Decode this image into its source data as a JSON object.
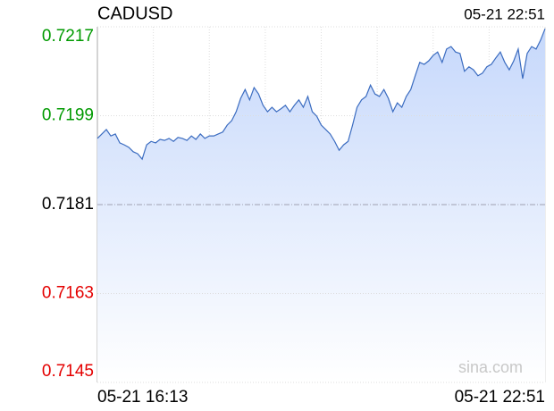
{
  "chart_data": {
    "type": "line",
    "title": "CADUSD",
    "timestamp": "05-21 22:51",
    "watermark": "sina.com",
    "categories": [
      "05-21 16:13",
      null,
      null,
      null,
      null,
      null,
      null,
      null,
      null,
      null,
      null,
      null,
      null,
      null,
      null,
      null,
      null,
      null,
      null,
      null,
      null,
      null,
      null,
      null,
      null,
      null,
      null,
      null,
      null,
      null,
      null,
      null,
      null,
      null,
      null,
      null,
      null,
      null,
      null,
      null,
      null,
      null,
      null,
      null,
      null,
      null,
      null,
      null,
      null,
      null,
      null,
      null,
      null,
      null,
      null,
      null,
      null,
      null,
      null,
      null,
      null,
      null,
      null,
      null,
      null,
      null,
      null,
      null,
      null,
      null,
      null,
      null,
      null,
      null,
      null,
      null,
      null,
      null,
      null,
      null,
      null,
      null,
      null,
      null,
      null,
      null,
      null,
      null,
      null,
      null,
      null,
      null,
      null,
      null,
      null,
      null,
      null,
      null,
      null,
      null,
      "05-21 22:51"
    ],
    "values": [
      0.71944,
      0.71953,
      0.71962,
      0.71949,
      0.71953,
      0.71935,
      0.71931,
      0.71926,
      0.71917,
      0.71913,
      0.71902,
      0.71931,
      0.71938,
      0.71935,
      0.71942,
      0.7194,
      0.71944,
      0.71938,
      0.71946,
      0.71944,
      0.7194,
      0.71949,
      0.71942,
      0.71953,
      0.71944,
      0.71949,
      0.71949,
      0.71953,
      0.71957,
      0.71971,
      0.7198,
      0.71998,
      0.72025,
      0.72043,
      0.72022,
      0.72047,
      0.72034,
      0.72011,
      0.71998,
      0.72007,
      0.71998,
      0.72004,
      0.72011,
      0.71998,
      0.72011,
      0.72022,
      0.72007,
      0.72029,
      0.71998,
      0.71989,
      0.71971,
      0.71962,
      0.71953,
      0.71938,
      0.7192,
      0.71931,
      0.71938,
      0.71971,
      0.72007,
      0.72022,
      0.72029,
      0.72052,
      0.72034,
      0.72029,
      0.72043,
      0.72025,
      0.71998,
      0.72016,
      0.72007,
      0.72029,
      0.72043,
      0.72071,
      0.72098,
      0.72094,
      0.72101,
      0.72112,
      0.72119,
      0.72098,
      0.72125,
      0.7213,
      0.72119,
      0.72116,
      0.7208,
      0.72089,
      0.72083,
      0.72071,
      0.72076,
      0.72089,
      0.72094,
      0.72107,
      0.72119,
      0.72098,
      0.72083,
      0.72101,
      0.72125,
      0.72065,
      0.72116,
      0.7213,
      0.72125,
      0.72143,
      0.72166
    ],
    "ylim": [
      0.7145,
      0.7217
    ],
    "yticks": [
      0.7145,
      0.7163,
      0.7181,
      0.7199,
      0.7217
    ],
    "reference": 0.7181,
    "grid": true,
    "line_color": "#3b6cc0",
    "fill_color": "#c6d8fb",
    "up_color": "#009a00",
    "down_color": "#e40000"
  }
}
